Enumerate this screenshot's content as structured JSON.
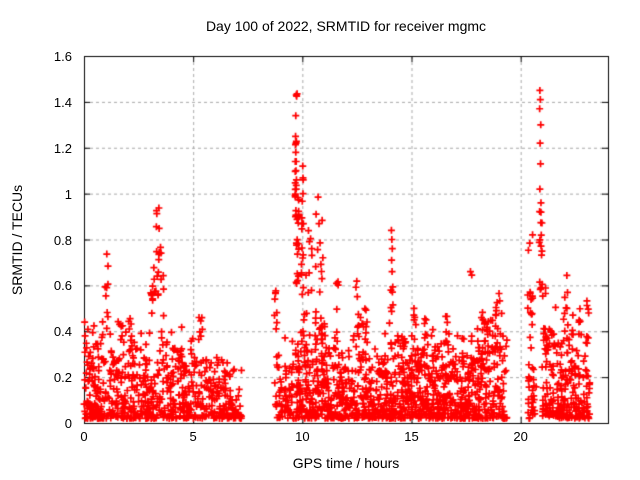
{
  "window": {
    "title": "Day 100 of 2022, SRMTID for receiver mgmc"
  },
  "chart_data": {
    "type": "scatter",
    "title": "Day 100 of 2022, SRMTID for receiver mgmc",
    "xlabel": "GPS time / hours",
    "ylabel": "SRMTID / TECUs",
    "xlim": [
      0,
      24
    ],
    "ylim": [
      0,
      1.6
    ],
    "xticks": {
      "values": [
        0,
        5,
        10,
        15,
        20
      ],
      "labels": [
        "0",
        "5",
        "10",
        "15",
        "20"
      ]
    },
    "yticks": {
      "values": [
        0,
        0.2,
        0.4,
        0.6,
        0.8,
        1.0,
        1.2,
        1.4,
        1.6
      ],
      "labels": [
        "0",
        "0.2",
        "0.4",
        "0.6",
        "0.8",
        "1",
        "1.2",
        "1.4",
        "1.6"
      ]
    },
    "grid": {
      "enabled": true,
      "color": "#a9a9a9",
      "dash": [
        3,
        3
      ]
    },
    "axis_color": "#000000",
    "marker": {
      "shape": "plus",
      "color": "#ff0000",
      "size": 7,
      "stroke": 1.7
    },
    "series": [
      {
        "name": "SRMTID",
        "color": "#ff0000"
      }
    ],
    "data_gaps_hours": [
      [
        7.25,
        8.7
      ],
      [
        19.35,
        20.3
      ]
    ],
    "seed": 100,
    "clusters": [
      {
        "type": "exp",
        "x": [
          0.0,
          1.0
        ],
        "cols": 11,
        "cpp": [
          8,
          15
        ],
        "ymin": 0.02,
        "ycap": 0.5
      },
      {
        "type": "exp",
        "x": [
          1.1,
          3.0
        ],
        "cols": 20,
        "cpp": [
          7,
          14
        ],
        "ymin": 0.02,
        "ycap": 0.48
      },
      {
        "type": "exp",
        "x": [
          2.9,
          3.7
        ],
        "cols": 8,
        "cpp": [
          4,
          9
        ],
        "ymin": 0.02,
        "ycap": 0.4
      },
      {
        "type": "exp",
        "x": [
          3.7,
          5.0
        ],
        "cols": 13,
        "cpp": [
          6,
          12
        ],
        "ymin": 0.02,
        "ycap": 0.46
      },
      {
        "type": "exp",
        "x": [
          5.0,
          5.7
        ],
        "cols": 7,
        "cpp": [
          6,
          11
        ],
        "ymin": 0.02,
        "ycap": 0.5
      },
      {
        "type": "exp",
        "x": [
          5.7,
          6.6
        ],
        "cols": 9,
        "cpp": [
          5,
          10
        ],
        "ymin": 0.02,
        "ycap": 0.38
      },
      {
        "type": "exp",
        "x": [
          6.6,
          7.2
        ],
        "cols": 6,
        "cpp": [
          4,
          9
        ],
        "ymin": 0.02,
        "ycap": 0.26
      },
      {
        "type": "exp",
        "x": [
          8.75,
          9.6
        ],
        "cols": 9,
        "cpp": [
          5,
          10
        ],
        "ymin": 0.02,
        "ycap": 0.38
      },
      {
        "type": "exp",
        "x": [
          9.7,
          11.3
        ],
        "cols": 16,
        "cpp": [
          9,
          16
        ],
        "ymin": 0.02,
        "ycap": 0.52
      },
      {
        "type": "exp",
        "x": [
          11.3,
          12.3
        ],
        "cols": 10,
        "cpp": [
          7,
          12
        ],
        "ymin": 0.02,
        "ycap": 0.46
      },
      {
        "type": "exp",
        "x": [
          12.3,
          13.5
        ],
        "cols": 12,
        "cpp": [
          8,
          14
        ],
        "ymin": 0.02,
        "ycap": 0.5
      },
      {
        "type": "exp",
        "x": [
          13.5,
          14.35
        ],
        "cols": 9,
        "cpp": [
          7,
          13
        ],
        "ymin": 0.02,
        "ycap": 0.45
      },
      {
        "type": "exp",
        "x": [
          14.35,
          15.8
        ],
        "cols": 15,
        "cpp": [
          9,
          16
        ],
        "ymin": 0.02,
        "ycap": 0.5
      },
      {
        "type": "exp",
        "x": [
          15.8,
          17.5
        ],
        "cols": 17,
        "cpp": [
          9,
          16
        ],
        "ymin": 0.02,
        "ycap": 0.48
      },
      {
        "type": "exp",
        "x": [
          17.5,
          18.6
        ],
        "cols": 11,
        "cpp": [
          8,
          14
        ],
        "ymin": 0.02,
        "ycap": 0.5
      },
      {
        "type": "exp",
        "x": [
          18.6,
          19.35
        ],
        "cols": 8,
        "cpp": [
          7,
          12
        ],
        "ymin": 0.02,
        "ycap": 0.55
      },
      {
        "type": "exp",
        "x": [
          20.3,
          20.7
        ],
        "cols": 5,
        "cpp": [
          4,
          8
        ],
        "ymin": 0.02,
        "ycap": 0.4
      },
      {
        "type": "exp",
        "x": [
          21.0,
          21.7
        ],
        "cols": 8,
        "cpp": [
          7,
          13
        ],
        "ymin": 0.03,
        "ycap": 0.6
      },
      {
        "type": "exp",
        "x": [
          21.7,
          22.5
        ],
        "cols": 9,
        "cpp": [
          7,
          13
        ],
        "ymin": 0.02,
        "ycap": 0.55
      },
      {
        "type": "exp",
        "x": [
          22.5,
          23.15
        ],
        "cols": 7,
        "cpp": [
          7,
          13
        ],
        "ymin": 0.02,
        "ycap": 0.55
      },
      {
        "type": "band",
        "x": [
          0.95,
          1.1
        ],
        "n": 9,
        "y": [
          0.4,
          0.78
        ]
      },
      {
        "type": "band",
        "x": [
          2.05,
          2.25
        ],
        "n": 7,
        "y": [
          0.28,
          0.52
        ]
      },
      {
        "type": "band",
        "x": [
          3.05,
          3.25
        ],
        "n": 10,
        "y": [
          0.45,
          0.68
        ]
      },
      {
        "type": "band",
        "x": [
          3.28,
          3.45
        ],
        "n": 14,
        "y": [
          0.55,
          0.94
        ]
      },
      {
        "type": "band",
        "x": [
          3.5,
          3.65
        ],
        "n": 9,
        "y": [
          0.3,
          0.8
        ]
      },
      {
        "type": "band",
        "x": [
          4.3,
          4.5
        ],
        "n": 6,
        "y": [
          0.25,
          0.43
        ]
      },
      {
        "type": "band",
        "x": [
          5.25,
          5.45
        ],
        "n": 6,
        "y": [
          0.3,
          0.5
        ]
      },
      {
        "type": "band",
        "x": [
          8.72,
          8.85
        ],
        "n": 8,
        "y": [
          0.35,
          0.62
        ]
      },
      {
        "type": "band",
        "x": [
          9.66,
          9.74
        ],
        "n": 12,
        "y": [
          0.85,
          1.28
        ]
      },
      {
        "type": "band",
        "x": [
          9.7,
          9.85
        ],
        "n": 20,
        "y": [
          0.6,
          1.0
        ]
      },
      {
        "type": "band",
        "x": [
          9.95,
          10.12
        ],
        "n": 14,
        "y": [
          0.5,
          1.12
        ]
      },
      {
        "type": "band",
        "x": [
          10.15,
          10.9
        ],
        "n": 24,
        "y": [
          0.3,
          0.85
        ]
      },
      {
        "type": "band",
        "x": [
          10.6,
          10.95
        ],
        "n": 8,
        "y": [
          0.6,
          1.0
        ]
      },
      {
        "type": "band",
        "x": [
          11.55,
          11.68
        ],
        "n": 6,
        "y": [
          0.35,
          0.62
        ]
      },
      {
        "type": "band",
        "x": [
          12.45,
          12.6
        ],
        "n": 7,
        "y": [
          0.35,
          0.62
        ]
      },
      {
        "type": "band",
        "x": [
          12.85,
          12.98
        ],
        "n": 6,
        "y": [
          0.3,
          0.55
        ]
      },
      {
        "type": "band",
        "x": [
          14.05,
          14.15
        ],
        "n": 6,
        "y": [
          0.4,
          0.62
        ]
      },
      {
        "type": "band",
        "x": [
          15.05,
          15.2
        ],
        "n": 6,
        "y": [
          0.3,
          0.55
        ]
      },
      {
        "type": "band",
        "x": [
          16.5,
          16.65
        ],
        "n": 5,
        "y": [
          0.35,
          0.55
        ]
      },
      {
        "type": "band",
        "x": [
          18.25,
          18.4
        ],
        "n": 5,
        "y": [
          0.3,
          0.5
        ]
      },
      {
        "type": "band",
        "x": [
          18.85,
          19.05
        ],
        "n": 8,
        "y": [
          0.4,
          0.66
        ]
      },
      {
        "type": "band",
        "x": [
          20.32,
          20.55
        ],
        "n": 16,
        "y": [
          0.2,
          0.88
        ]
      },
      {
        "type": "band",
        "x": [
          20.85,
          21.02
        ],
        "n": 16,
        "y": [
          0.55,
          0.93
        ]
      },
      {
        "type": "band",
        "x": [
          21.05,
          21.2
        ],
        "n": 8,
        "y": [
          0.3,
          0.6
        ]
      },
      {
        "type": "band",
        "x": [
          21.95,
          22.15
        ],
        "n": 8,
        "y": [
          0.35,
          0.65
        ]
      },
      {
        "type": "band",
        "x": [
          23.0,
          23.12
        ],
        "n": 8,
        "y": [
          0.15,
          0.55
        ]
      }
    ],
    "spike_points": [
      [
        9.72,
        1.43
      ],
      [
        9.76,
        1.435
      ],
      [
        9.74,
        1.425
      ],
      [
        9.7,
        1.34
      ],
      [
        9.69,
        1.25
      ],
      [
        9.71,
        1.22
      ],
      [
        9.7,
        1.18
      ],
      [
        9.72,
        1.14
      ],
      [
        9.71,
        1.1
      ],
      [
        9.73,
        1.06
      ],
      [
        9.72,
        1.02
      ],
      [
        10.02,
        1.12
      ],
      [
        10.04,
        1.06
      ],
      [
        10.03,
        1.0
      ],
      [
        14.08,
        0.84
      ],
      [
        14.1,
        0.8
      ],
      [
        14.12,
        0.76
      ],
      [
        14.09,
        0.71
      ],
      [
        14.11,
        0.66
      ],
      [
        17.7,
        0.66
      ],
      [
        17.76,
        0.645
      ],
      [
        20.88,
        1.45
      ],
      [
        20.9,
        1.41
      ],
      [
        20.87,
        1.37
      ],
      [
        20.92,
        1.3
      ],
      [
        20.89,
        1.22
      ],
      [
        20.91,
        1.13
      ],
      [
        20.88,
        1.02
      ],
      [
        20.93,
        0.96
      ],
      [
        3.08,
        0.02
      ],
      [
        3.12,
        0.03
      ],
      [
        7.16,
        0.02
      ],
      [
        7.21,
        0.03
      ],
      [
        0.03,
        0.44
      ],
      [
        0.05,
        0.38
      ]
    ]
  }
}
